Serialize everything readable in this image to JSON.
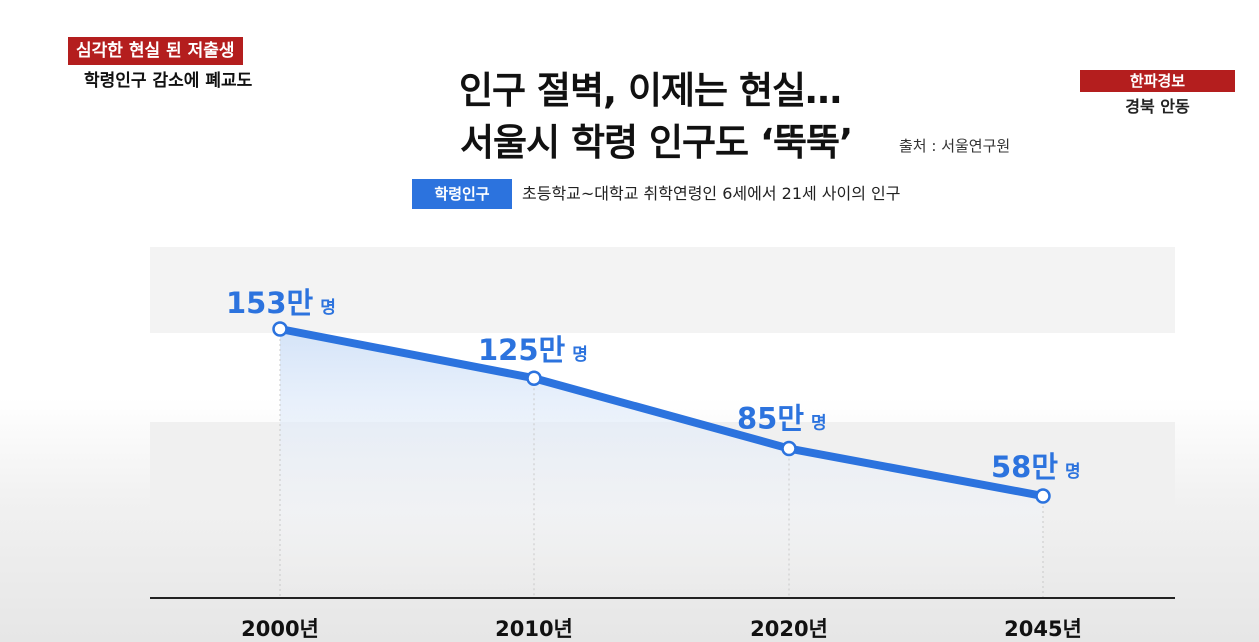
{
  "header": {
    "tag_red": "심각한 현실 된 저출생",
    "tag_sub": "학령인구 감소에 폐교도",
    "right_red": "한파경보",
    "right_white": "경북 안동"
  },
  "title": {
    "line1": "인구 절벽, 이제는 현실…",
    "line2": "서울시 학령 인구도 ‘뚝뚝’",
    "source": "출처 : 서울연구원"
  },
  "definition": {
    "badge": "학령인구",
    "text": "초등학교~대학교 취학연령인 6세에서 21세 사이의 인구"
  },
  "colors": {
    "line": "#2c73de",
    "label": "#2c73de",
    "red": "#b41e1e"
  },
  "chart_data": {
    "type": "line",
    "categories": [
      "2000년",
      "2010년",
      "2020년",
      "2045년"
    ],
    "values": [
      153,
      125,
      85,
      58
    ],
    "data_labels": [
      {
        "num": "153만",
        "unit": "명"
      },
      {
        "num": "125만",
        "unit": "명"
      },
      {
        "num": "85만",
        "unit": "명"
      },
      {
        "num": "58만",
        "unit": "명"
      }
    ],
    "ylim": [
      0,
      160
    ],
    "grid": false
  }
}
